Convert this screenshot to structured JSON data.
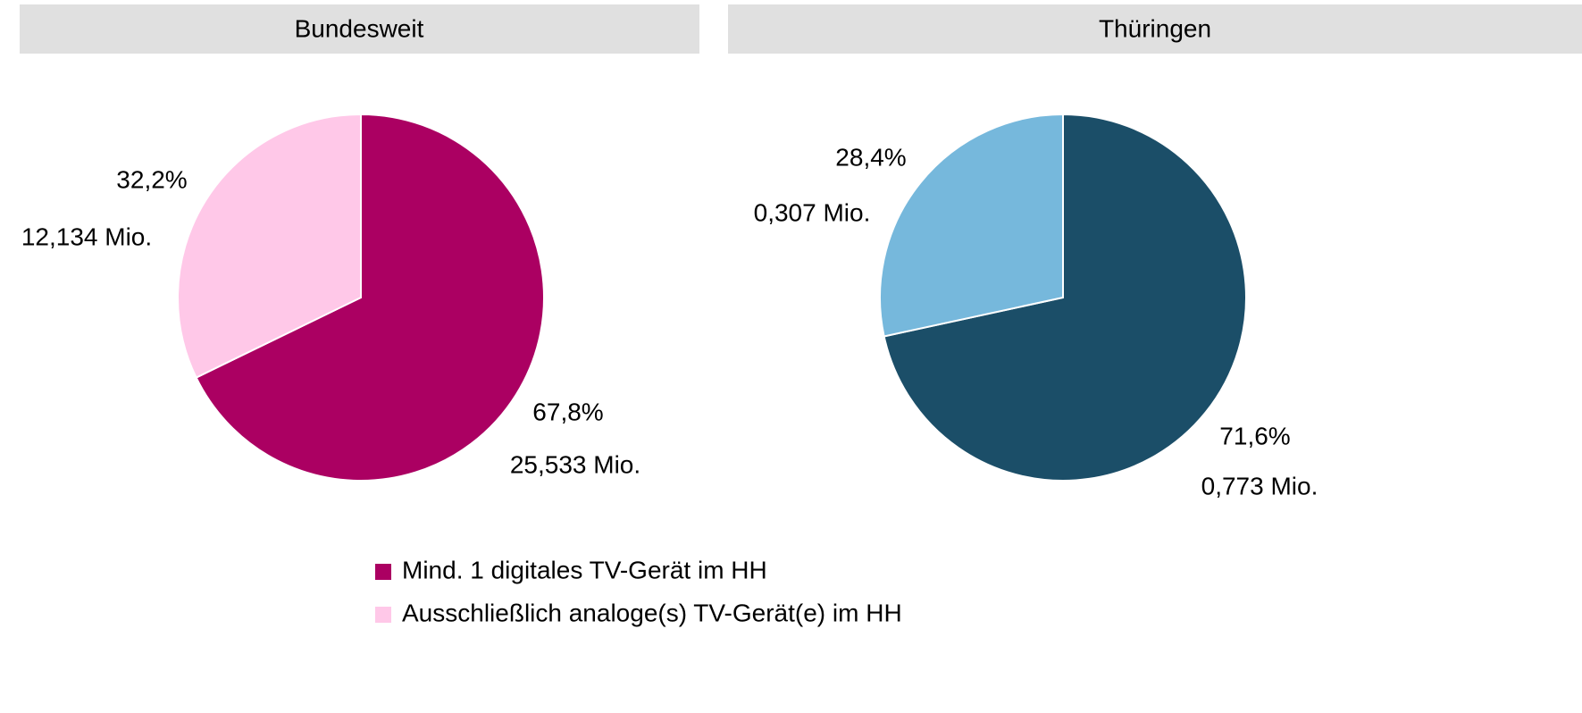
{
  "chart_data": [
    {
      "type": "pie",
      "title": "Bundesweit",
      "categories": [
        "Mind. 1 digitales TV-Gerät im HH",
        "Ausschließlich analoge(s) TV-Gerät(e) im HH"
      ],
      "values": [
        67.8,
        32.2
      ],
      "value_labels": [
        "67,8%",
        "32,2%"
      ],
      "households": [
        25.533,
        12.134
      ],
      "household_labels": [
        "25,533 Mio.",
        "12,134 Mio."
      ],
      "colors": [
        "#ab0062",
        "#ffc8e8"
      ],
      "legend": "bottom"
    },
    {
      "type": "pie",
      "title": "Thüringen",
      "values": [
        71.6,
        28.4
      ],
      "value_labels": [
        "71,6%",
        "28,4%"
      ],
      "households": [
        0.773,
        0.307
      ],
      "household_labels": [
        "0,773 Mio.",
        "0,307 Mio."
      ],
      "colors": [
        "#1b4e68",
        "#76b8dc"
      ]
    }
  ]
}
